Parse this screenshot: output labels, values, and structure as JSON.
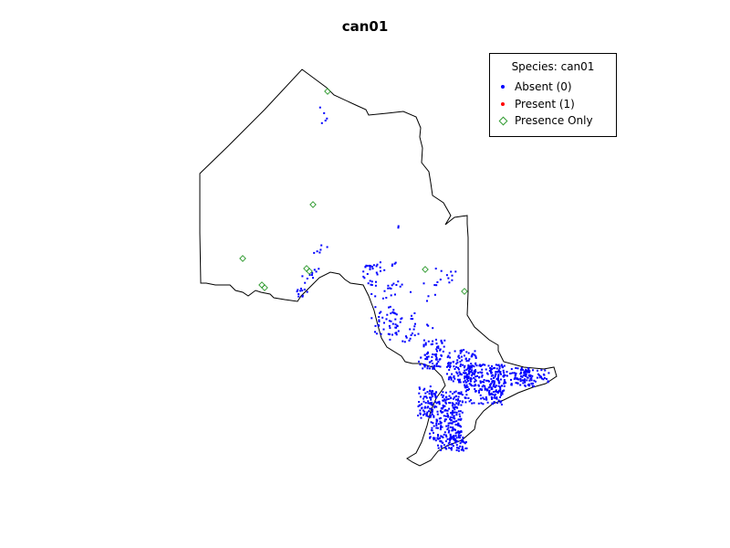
{
  "title": "can01",
  "legend": {
    "title": "Species: can01",
    "items": [
      {
        "label": "Absent (0)",
        "symbol": "filled-dot",
        "color": "#0000ff"
      },
      {
        "label": "Present (1)",
        "symbol": "filled-dot",
        "color": "#ff0000"
      },
      {
        "label": "Presence Only",
        "symbol": "open-diamond",
        "color": "#2e9a2e"
      }
    ]
  },
  "colors": {
    "absent": "#0000ff",
    "present": "#ff0000",
    "presence_only": "#2e9a2e",
    "outline": "#000000"
  }
}
